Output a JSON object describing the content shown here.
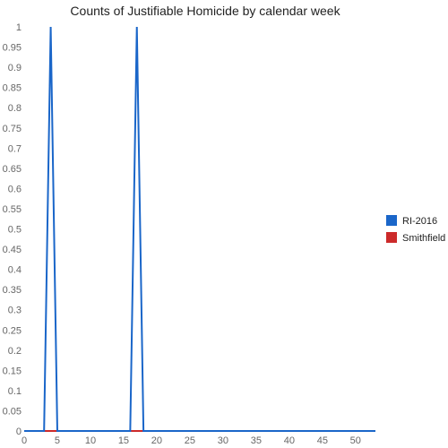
{
  "chart_data": {
    "type": "line",
    "title": "Counts of Justifiable Homicide by calendar week",
    "xlabel": "",
    "ylabel": "",
    "xlim": [
      0,
      53
    ],
    "ylim": [
      0,
      1
    ],
    "x_ticks": [
      0,
      5,
      10,
      15,
      20,
      25,
      30,
      35,
      40,
      45,
      50
    ],
    "y_ticks": [
      0,
      0.05,
      0.1,
      0.15,
      0.2,
      0.25,
      0.3,
      0.35,
      0.4,
      0.45,
      0.5,
      0.55,
      0.6,
      0.65,
      0.7,
      0.75,
      0.8,
      0.85,
      0.9,
      0.95,
      1
    ],
    "legend_position": "right",
    "grid": false,
    "series": [
      {
        "name": "RI-2016",
        "color": "#1a66c9",
        "x": [
          0,
          1,
          2,
          3,
          4,
          5,
          6,
          7,
          8,
          9,
          10,
          11,
          12,
          13,
          14,
          15,
          16,
          17,
          18,
          19,
          20,
          21,
          22,
          23,
          24,
          25,
          26,
          27,
          28,
          29,
          30,
          31,
          32,
          33,
          34,
          35,
          36,
          37,
          38,
          39,
          40,
          41,
          42,
          43,
          44,
          45,
          46,
          47,
          48,
          49,
          50,
          51,
          52,
          53
        ],
        "values": [
          0,
          0,
          0,
          0,
          1,
          0,
          0,
          0,
          0,
          0,
          0,
          0,
          0,
          0,
          0,
          0,
          0,
          1,
          0,
          0,
          0,
          0,
          0,
          0,
          0,
          0,
          0,
          0,
          0,
          0,
          0,
          0,
          0,
          0,
          0,
          0,
          0,
          0,
          0,
          0,
          0,
          0,
          0,
          0,
          0,
          0,
          0,
          0,
          0,
          0,
          0,
          0,
          0,
          0
        ]
      },
      {
        "name": "Smithfield",
        "color": "#cc2a2a",
        "x": [
          0,
          1,
          2,
          3,
          4,
          5,
          6,
          7,
          8,
          9,
          10,
          11,
          12,
          13,
          14,
          15,
          16,
          17,
          18,
          19,
          20,
          21,
          22,
          23,
          24,
          25,
          26,
          27,
          28,
          29,
          30,
          31,
          32,
          33,
          34,
          35,
          36,
          37,
          38,
          39,
          40,
          41,
          42,
          43,
          44,
          45,
          46,
          47,
          48,
          49,
          50,
          51,
          52,
          53
        ],
        "values": [
          0,
          0,
          0,
          0,
          0,
          0,
          0,
          0,
          0,
          0,
          0,
          0,
          0,
          0,
          0,
          0,
          0,
          0,
          0,
          0,
          0,
          0,
          0,
          0,
          0,
          0,
          0,
          0,
          0,
          0,
          0,
          0,
          0,
          0,
          0,
          0,
          0,
          0,
          0,
          0,
          0,
          0,
          0,
          0,
          0,
          0,
          0,
          0,
          0,
          0,
          0,
          0,
          0,
          0
        ]
      }
    ]
  }
}
